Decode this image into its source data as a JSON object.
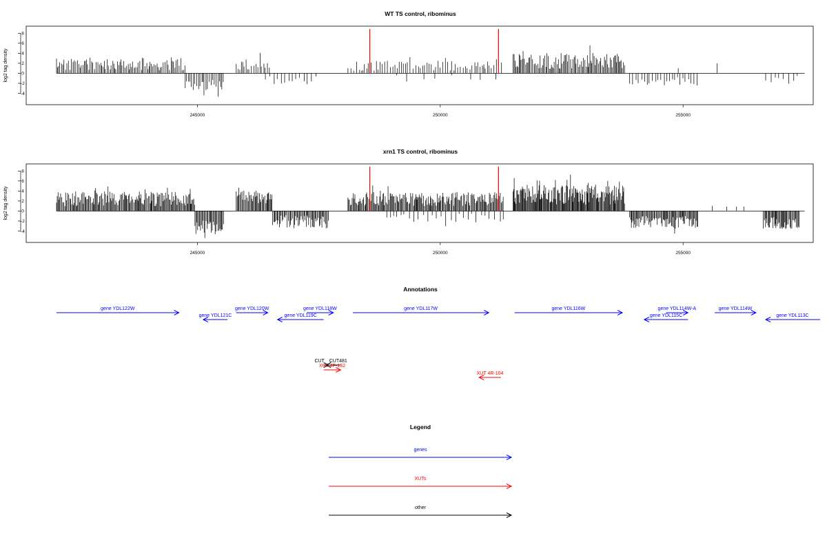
{
  "chart_data": [
    {
      "type": "bar",
      "title": "WT TS control, ribominus",
      "ylabel": "log2 tag density",
      "xlim": [
        241000,
        257500
      ],
      "ylim": [
        -6,
        9
      ],
      "xticks": [
        245000,
        250000,
        255000
      ],
      "xtick_labels": [
        "245000",
        "250000",
        "255000"
      ],
      "yticks": [
        -4,
        -2,
        0,
        2,
        4,
        6,
        8
      ],
      "ytick_labels": [
        "-4",
        "-2",
        "0",
        "2",
        "4",
        "6",
        "8"
      ],
      "red_markers_x": [
        248550,
        251200
      ],
      "segments": [
        {
          "start": 242100,
          "end": 244750,
          "strand": "+",
          "mean": 1.9,
          "spread": 1.3,
          "step": 28,
          "seed": 11
        },
        {
          "start": 244750,
          "end": 245550,
          "strand": "-",
          "mean": -2.4,
          "spread": 1.2,
          "step": 32,
          "seed": 12
        },
        {
          "start": 245800,
          "end": 246500,
          "strand": "+",
          "mean": 1.7,
          "spread": 1.1,
          "step": 40,
          "seed": 13
        },
        {
          "start": 246400,
          "end": 247500,
          "strand": "-",
          "mean": -1.4,
          "spread": 0.9,
          "step": 75,
          "seed": 14
        },
        {
          "start": 248100,
          "end": 251300,
          "strand": "+",
          "mean": 1.5,
          "spread": 1.0,
          "step": 45,
          "seed": 15
        },
        {
          "start": 249100,
          "end": 251200,
          "strand": "-",
          "mean": -1.0,
          "spread": 0.7,
          "step": 280,
          "seed": 16
        },
        {
          "start": 251500,
          "end": 253800,
          "strand": "+",
          "mean": 2.5,
          "spread": 1.6,
          "step": 24,
          "seed": 17
        },
        {
          "start": 253900,
          "end": 255300,
          "strand": "-",
          "mean": -1.6,
          "spread": 0.9,
          "step": 55,
          "seed": 18
        },
        {
          "start": 256700,
          "end": 257400,
          "strand": "-",
          "mean": -1.3,
          "spread": 0.8,
          "step": 90,
          "seed": 19
        }
      ],
      "singles": [
        [
          254900,
          1.0
        ],
        [
          255700,
          2.0
        ],
        [
          250900,
          1.2
        ]
      ]
    },
    {
      "type": "bar",
      "title": "xrn1 TS control, ribominus",
      "ylabel": "log2 tag density",
      "xlim": [
        241000,
        257500
      ],
      "ylim": [
        -6,
        9
      ],
      "xticks": [
        245000,
        250000,
        255000
      ],
      "xtick_labels": [
        "245000",
        "250000",
        "255000"
      ],
      "yticks": [
        -4,
        -2,
        0,
        2,
        4,
        6,
        8
      ],
      "ytick_labels": [
        "-4",
        "-2",
        "0",
        "2",
        "4",
        "6",
        "8"
      ],
      "red_markers_x": [
        248550,
        251200
      ],
      "segments": [
        {
          "start": 242100,
          "end": 244950,
          "strand": "+",
          "mean": 2.4,
          "spread": 1.5,
          "step": 18,
          "seed": 21
        },
        {
          "start": 244950,
          "end": 245550,
          "strand": "-",
          "mean": -3.2,
          "spread": 1.3,
          "step": 18,
          "seed": 22
        },
        {
          "start": 245800,
          "end": 246550,
          "strand": "+",
          "mean": 2.7,
          "spread": 1.4,
          "step": 18,
          "seed": 23
        },
        {
          "start": 246550,
          "end": 247700,
          "strand": "-",
          "mean": -2.1,
          "spread": 1.3,
          "step": 20,
          "seed": 24
        },
        {
          "start": 248100,
          "end": 251300,
          "strand": "+",
          "mean": 2.4,
          "spread": 1.4,
          "step": 18,
          "seed": 25
        },
        {
          "start": 248900,
          "end": 251300,
          "strand": "-",
          "mean": -1.4,
          "spread": 0.9,
          "step": 90,
          "seed": 26
        },
        {
          "start": 251500,
          "end": 253800,
          "strand": "+",
          "mean": 3.3,
          "spread": 2.0,
          "step": 14,
          "seed": 27
        },
        {
          "start": 253900,
          "end": 255300,
          "strand": "-",
          "mean": -2.2,
          "spread": 1.2,
          "step": 18,
          "seed": 28
        },
        {
          "start": 256650,
          "end": 257400,
          "strand": "-",
          "mean": -2.4,
          "spread": 1.2,
          "step": 18,
          "seed": 29
        }
      ],
      "singles": [
        [
          255600,
          1.0
        ],
        [
          255900,
          0.9
        ],
        [
          256100,
          0.9
        ],
        [
          256250,
          0.9
        ]
      ]
    }
  ],
  "annotations": {
    "title": "Annotations",
    "features": [
      {
        "label": "gene YDL122W",
        "start": 242100,
        "end": 244620,
        "strand": "+",
        "row": 0,
        "kind": "gene"
      },
      {
        "label": "gene YDL121C",
        "start": 245120,
        "end": 245620,
        "strand": "-",
        "row": 1,
        "kind": "gene"
      },
      {
        "label": "gene YDL120W",
        "start": 245800,
        "end": 246450,
        "strand": "+",
        "row": 0,
        "kind": "gene"
      },
      {
        "label": "gene YDL119C",
        "start": 246650,
        "end": 247600,
        "strand": "-",
        "row": 1,
        "kind": "gene"
      },
      {
        "label": "gene YDL118W",
        "start": 247250,
        "end": 247800,
        "strand": "+",
        "row": 0,
        "kind": "gene"
      },
      {
        "label": "gene YDL117W",
        "start": 248200,
        "end": 251000,
        "strand": "+",
        "row": 0,
        "kind": "gene"
      },
      {
        "label": "gene YDL116W",
        "start": 251530,
        "end": 253750,
        "strand": "+",
        "row": 0,
        "kind": "gene"
      },
      {
        "label": "gene YDL115C",
        "start": 254200,
        "end": 255100,
        "strand": "-",
        "row": 1,
        "kind": "gene"
      },
      {
        "label": "gene YDL114W-A",
        "start": 254650,
        "end": 255100,
        "strand": "+",
        "row": 0,
        "kind": "gene"
      },
      {
        "label": "gene YDL114W",
        "start": 255650,
        "end": 256500,
        "strand": "+",
        "row": 0,
        "kind": "gene"
      },
      {
        "label": "gene YDL113C",
        "start": 256700,
        "end": 258000,
        "strand": "-",
        "row": 1,
        "kind": "gene"
      },
      {
        "label": "CUT",
        "start": 247600,
        "end": 247700,
        "strand": "+",
        "row": 2,
        "kind": "other"
      },
      {
        "label": "CUT481",
        "start": 247650,
        "end": 247950,
        "strand": "-",
        "row": 2,
        "kind": "other"
      },
      {
        "label": "XUT 4F-132",
        "start": 247600,
        "end": 247950,
        "strand": "+",
        "row": 3,
        "kind": "xut"
      },
      {
        "label": "XUT 4R-104",
        "start": 250800,
        "end": 251250,
        "strand": "-",
        "row": 4,
        "kind": "xut"
      }
    ]
  },
  "legend": {
    "title": "Legend",
    "items": [
      {
        "label": "genes",
        "color": "#0000ff"
      },
      {
        "label": "XUTs",
        "color": "#ff0000"
      },
      {
        "label": "other",
        "color": "#000000"
      }
    ]
  },
  "colors": {
    "gene": "#0000ff",
    "xut": "#ff0000",
    "other": "#000000",
    "marker": "#ff0000"
  }
}
